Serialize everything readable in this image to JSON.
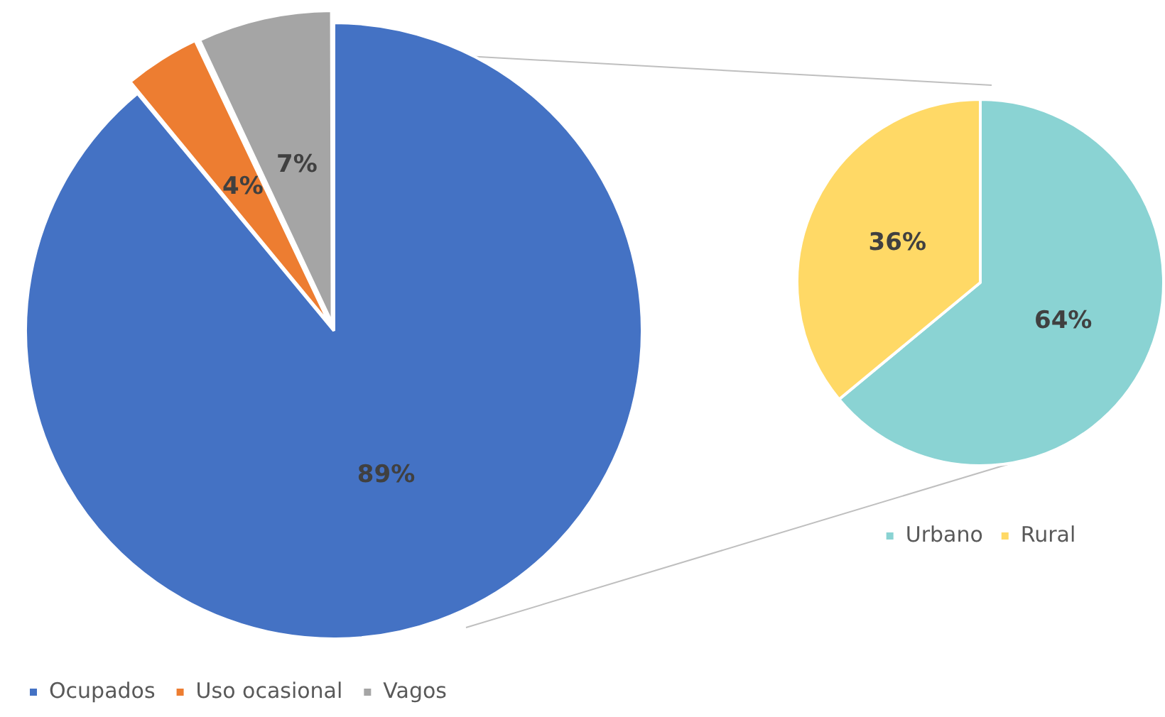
{
  "chart_data": [
    {
      "type": "pie",
      "categories": [
        "Ocupados",
        "Uso ocasional",
        "Vagos"
      ],
      "values": [
        89,
        4,
        7
      ],
      "colors": [
        "#4472c4",
        "#ed7d31",
        "#a5a5a5"
      ],
      "value_labels": [
        "89%",
        "4%",
        "7%"
      ],
      "legend": "bottom"
    },
    {
      "type": "pie",
      "categories": [
        "Urbano",
        "Rural"
      ],
      "values": [
        64,
        36
      ],
      "colors": [
        "#8ad3d3",
        "#ffd966"
      ],
      "value_labels": [
        "64%",
        "36%"
      ],
      "legend": "bottom"
    }
  ]
}
